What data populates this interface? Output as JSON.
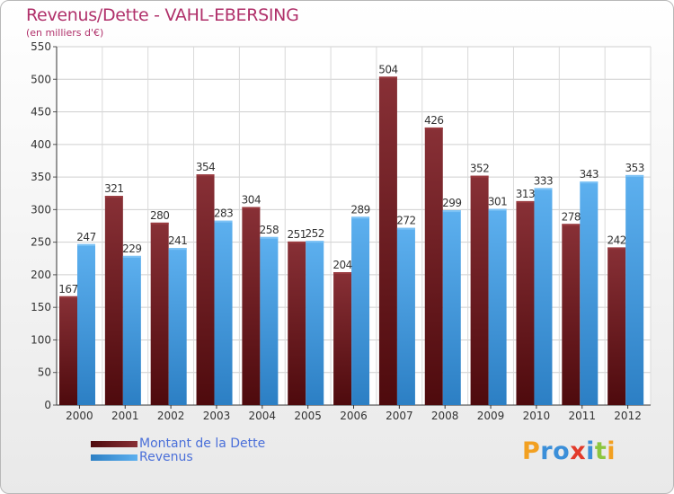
{
  "chart_data": {
    "type": "bar",
    "title": "Revenus/Dette - VAHL-EBERSING",
    "subtitle": "(en milliers d'€)",
    "categories": [
      "2000",
      "2001",
      "2002",
      "2003",
      "2004",
      "2005",
      "2006",
      "2007",
      "2008",
      "2009",
      "2010",
      "2011",
      "2012"
    ],
    "series": [
      {
        "name": "Montant de la Dette",
        "color": "#6e1a1d",
        "values": [
          167,
          321,
          280,
          354,
          304,
          251,
          204,
          504,
          426,
          352,
          313,
          278,
          242
        ]
      },
      {
        "name": "Revenus",
        "color": "#4aa3e6",
        "values": [
          247,
          229,
          241,
          283,
          258,
          252,
          289,
          272,
          299,
          301,
          333,
          343,
          353
        ]
      }
    ],
    "ylim": [
      0,
      550
    ],
    "yticks": [
      0,
      50,
      100,
      150,
      200,
      250,
      300,
      350,
      400,
      450,
      500,
      550
    ],
    "grid": true,
    "legend": "bottom-left",
    "data_labels": true
  },
  "logo": {
    "letters": [
      {
        "ch": "P",
        "color": "#f2a021"
      },
      {
        "ch": "r",
        "color": "#3b8fd9"
      },
      {
        "ch": "o",
        "color": "#3b8fd9"
      },
      {
        "ch": "x",
        "color": "#e23a2a"
      },
      {
        "ch": "i",
        "color": "#3b8fd9"
      },
      {
        "ch": "t",
        "color": "#8cc63f"
      },
      {
        "ch": "i",
        "color": "#f2a021"
      }
    ]
  }
}
